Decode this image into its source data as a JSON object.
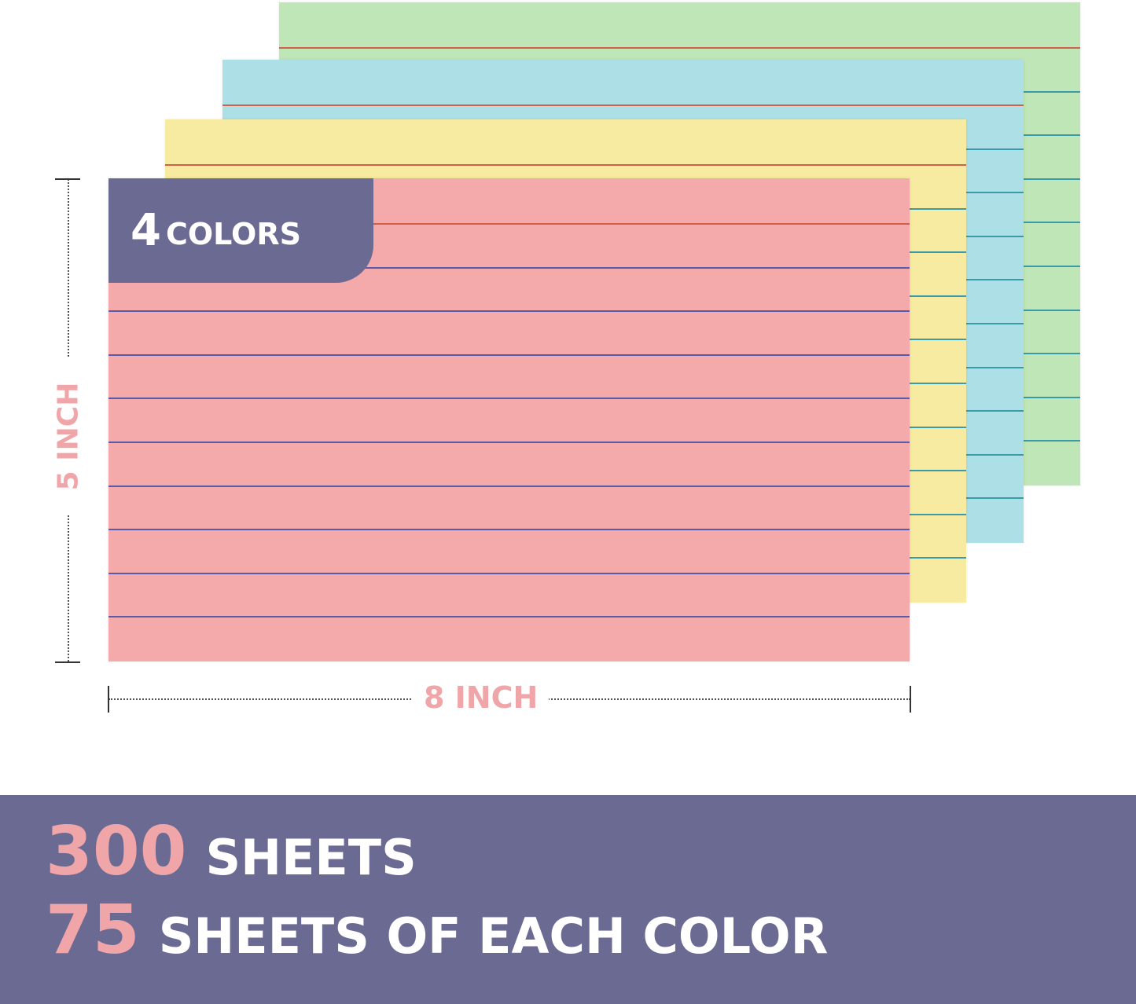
{
  "colors": {
    "green": "#bfe6b6",
    "blue": "#ace0e6",
    "yellow": "#f6eba0",
    "pink": "#f4aaaa",
    "accent": "#6b6a93",
    "label_pink": "#f0a5a8"
  },
  "badge": {
    "number": "4",
    "word": "COLORS"
  },
  "dimensions": {
    "height": "5 INCH",
    "width": "8 INCH"
  },
  "banner": {
    "line1_number": "300",
    "line1_text": "SHEETS",
    "line2_number": "75",
    "line2_text": "SHEETS OF EACH COLOR"
  }
}
